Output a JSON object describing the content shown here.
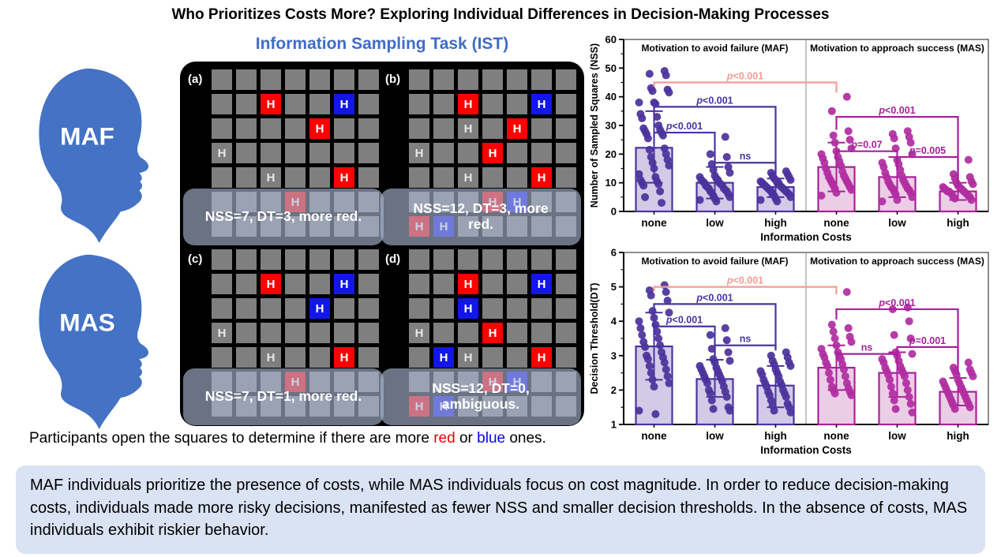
{
  "figure_title": "Who Prioritizes Costs More? Exploring Individual Differences in Decision-Making Processes",
  "ist_title": "Information Sampling Task (IST)",
  "heads": [
    {
      "label": "MAF"
    },
    {
      "label": "MAS"
    }
  ],
  "colors": {
    "head_blue": "#4472c4",
    "square_gray": "#7f7f7f",
    "square_red": "#fe0000",
    "square_blue": "#1216e8"
  },
  "ist_panels": [
    {
      "label": "(a)",
      "caption": "NSS=7, DT=3, more red.",
      "rows": [
        ".......",
        "..R..B.",
        "....R..",
        "G......",
        "..G..R.",
        "...R...",
        "......."
      ]
    },
    {
      "label": "(b)",
      "caption": "NSS=12, DT=3, more red.",
      "rows": [
        ".......",
        "..R..B.",
        "..G.R..",
        "G..R...",
        "..G..R.",
        "...RB..",
        "RB....."
      ]
    },
    {
      "label": "(c)",
      "caption": "NSS=7, DT=1, more red.",
      "rows": [
        ".......",
        "..R..B.",
        "....B..",
        "G......",
        "..G..R.",
        "...R...",
        "......."
      ]
    },
    {
      "label": "(d)",
      "caption": "NSS=12, DT=0, ambiguous.",
      "rows": [
        ".......",
        "..R..B.",
        "..B....",
        "G..R...",
        ".BG..R.",
        "...RB..",
        "RB....."
      ]
    }
  ],
  "participants_line": {
    "pre": "Participants open the squares to determine if there are more ",
    "red_word": "red",
    "mid": " or ",
    "blue_word": "blue",
    "post": " ones."
  },
  "summary_text": "MAF individuals prioritize the presence of costs, while MAS individuals focus on cost magnitude. In order to reduce decision-making costs, individuals made more risky decisions, manifested as fewer NSS and smaller decision thresholds. In the absence of costs, MAS individuals exhibit riskier behavior.",
  "chart_colors": {
    "maf": {
      "stroke": "#4a35a0",
      "fill": "#cac1e3",
      "dot": "#4b339c"
    },
    "mas": {
      "stroke": "#a8219b",
      "fill": "#e8c6e2",
      "dot": "#b02da0"
    },
    "pink": "#f59b93"
  },
  "chart_data": [
    {
      "id": "chart-nss",
      "type": "bar",
      "title": "",
      "ylabel": "Number of Sampled Squares (NSS)",
      "xlabel": "Information Costs",
      "ylim": [
        0,
        60
      ],
      "yticks": [
        0,
        10,
        20,
        30,
        40,
        50,
        60
      ],
      "yminor": 5,
      "panel_titles": [
        "Motivation to avoid failure (MAF)",
        "Motivation to approach success (MAS)"
      ],
      "categories": [
        "none",
        "low",
        "high",
        "none",
        "low",
        "high"
      ],
      "bars": [
        {
          "panel": "MAF",
          "category": "none",
          "color": "maf",
          "mean": 22.2,
          "err_lo": 10,
          "err_hi": 35,
          "points": [
            49,
            48,
            47.5,
            43,
            42.5,
            42,
            41.5,
            38,
            38,
            37.5,
            34,
            33,
            32.5,
            30,
            29,
            28.5,
            28,
            27.5,
            27,
            26.5,
            25.5,
            22,
            21.5,
            20,
            19,
            18,
            17,
            16,
            15,
            13,
            12,
            11,
            10.5,
            10,
            9.5,
            9,
            7,
            5,
            3
          ]
        },
        {
          "panel": "MAF",
          "category": "low",
          "color": "maf",
          "mean": 10,
          "err_lo": 4.5,
          "err_hi": 15.5,
          "points": [
            26,
            20,
            19,
            16.5,
            15.5,
            14.5,
            13.5,
            12.5,
            12,
            11.5,
            11,
            11,
            10.5,
            10,
            10,
            9.5,
            9,
            9,
            8.5,
            8,
            8,
            7.5,
            7,
            7,
            6.5,
            6,
            5.5,
            5,
            4.5,
            4,
            3.5
          ]
        },
        {
          "panel": "MAF",
          "category": "high",
          "color": "maf",
          "mean": 8.5,
          "err_lo": 5,
          "err_hi": 11.5,
          "points": [
            14,
            13.5,
            13,
            12.5,
            12,
            11.5,
            11,
            11,
            10.5,
            10,
            10,
            10,
            9.5,
            9,
            9,
            8.5,
            8.5,
            8,
            8,
            7.5,
            7.5,
            7,
            7,
            6.5,
            6,
            6,
            5.5,
            5,
            4.5,
            4,
            3.5
          ]
        },
        {
          "panel": "MAS",
          "category": "none",
          "color": "mas",
          "mean": 15.5,
          "err_lo": 7,
          "err_hi": 24,
          "points": [
            40,
            35,
            28,
            26.5,
            25,
            24,
            22,
            21,
            20,
            19,
            18.5,
            17.5,
            17,
            16,
            15,
            14,
            13.5,
            12.5,
            12,
            11.5,
            11,
            10.5,
            10,
            9.5,
            9,
            8.5,
            8,
            7.5,
            6.5,
            5.5
          ]
        },
        {
          "panel": "MAS",
          "category": "low",
          "color": "mas",
          "mean": 12,
          "err_lo": 5,
          "err_hi": 19,
          "points": [
            28,
            27,
            26,
            25.5,
            24,
            22,
            20,
            18,
            17,
            16.5,
            15.5,
            14.5,
            13.5,
            12.5,
            12,
            11,
            10.5,
            10,
            9.5,
            9,
            8.5,
            8,
            8,
            7.5,
            7,
            6.5,
            6,
            5,
            4,
            3.5
          ]
        },
        {
          "panel": "MAS",
          "category": "high",
          "color": "mas",
          "mean": 7,
          "err_lo": 4,
          "err_hi": 10,
          "points": [
            18,
            13,
            12,
            11.5,
            10.5,
            10,
            9.5,
            9,
            8.5,
            8.5,
            8,
            8,
            7.5,
            7.5,
            7,
            7,
            7,
            6.5,
            6.5,
            6,
            6,
            5.5,
            5,
            5,
            4.5,
            4
          ]
        }
      ],
      "brackets": [
        {
          "from": 0,
          "to": 3,
          "y": 45,
          "e1": 43.5,
          "e2": 41.5,
          "label": "p<0.001",
          "color": "pink"
        },
        {
          "from": 0,
          "to": 1,
          "y": 27.5,
          "e1": 23.5,
          "e2": 16.5,
          "label": "p<0.001",
          "color": "maf"
        },
        {
          "from": 0,
          "to": 2,
          "y": 36.5,
          "e1": 33.5,
          "e2": 12.5,
          "label": "p<0.001",
          "color": "maf"
        },
        {
          "from": 1,
          "to": 2,
          "y": 17,
          "e1": 13.5,
          "e2": 12.5,
          "label": "ns",
          "color": "maf"
        },
        {
          "from": 3,
          "to": 4,
          "y": 21,
          "e1": 17,
          "e2": 14.5,
          "label": "p=0.07",
          "color": "mas"
        },
        {
          "from": 3,
          "to": 5,
          "y": 33,
          "e1": 28.5,
          "e2": 8.5,
          "label": "p<0.001",
          "color": "mas"
        },
        {
          "from": 4,
          "to": 5,
          "y": 19,
          "e1": 14.5,
          "e2": 8.5,
          "label": "p=0.005",
          "color": "mas"
        }
      ]
    },
    {
      "id": "chart-dt",
      "type": "bar",
      "title": "",
      "ylabel": "Decision Threshold(DT)",
      "xlabel": "Information Costs",
      "ylim": [
        1,
        6
      ],
      "yticks": [
        1,
        2,
        3,
        4,
        5,
        6
      ],
      "yminor": 0.5,
      "panel_titles": [
        "Motivation to avoid failure (MAF)",
        "Motivation to approach success (MAS)"
      ],
      "categories": [
        "none",
        "low",
        "high",
        "none",
        "low",
        "high"
      ],
      "bars": [
        {
          "panel": "MAF",
          "category": "none",
          "color": "maf",
          "mean": 3.27,
          "err_lo": 2.3,
          "err_hi": 4.25,
          "points": [
            5.05,
            4.9,
            4.85,
            4.75,
            4.6,
            4.3,
            4.25,
            4.1,
            4.0,
            3.9,
            3.8,
            3.7,
            3.6,
            3.5,
            3.4,
            3.3,
            3.25,
            3.1,
            3.0,
            2.95,
            2.9,
            2.8,
            2.7,
            2.6,
            2.5,
            2.4,
            2.3,
            2.2,
            2.1,
            1.4,
            1.3
          ]
        },
        {
          "panel": "MAF",
          "category": "low",
          "color": "maf",
          "mean": 2.32,
          "err_lo": 1.8,
          "err_hi": 2.88,
          "points": [
            3.8,
            3.6,
            3.45,
            3.2,
            3.1,
            2.9,
            2.85,
            2.8,
            2.7,
            2.65,
            2.6,
            2.55,
            2.5,
            2.45,
            2.4,
            2.35,
            2.3,
            2.25,
            2.2,
            2.1,
            2.0,
            1.95,
            1.9,
            1.8,
            1.7,
            1.5,
            1.45,
            1.4
          ]
        },
        {
          "panel": "MAF",
          "category": "high",
          "color": "maf",
          "mean": 2.13,
          "err_lo": 1.5,
          "err_hi": 2.7,
          "points": [
            3.1,
            3.0,
            2.95,
            2.85,
            2.8,
            2.75,
            2.7,
            2.6,
            2.55,
            2.5,
            2.45,
            2.4,
            2.3,
            2.25,
            2.2,
            2.15,
            2.1,
            2.0,
            1.95,
            1.9,
            1.85,
            1.8,
            1.7,
            1.6,
            1.55,
            1.5,
            1.4,
            1.35
          ]
        },
        {
          "panel": "MAS",
          "category": "none",
          "color": "mas",
          "mean": 2.65,
          "err_lo": 2.0,
          "err_hi": 3.3,
          "points": [
            4.85,
            3.9,
            3.8,
            3.7,
            3.55,
            3.5,
            3.4,
            3.3,
            3.2,
            3.1,
            3.05,
            3.0,
            2.95,
            2.9,
            2.8,
            2.75,
            2.7,
            2.6,
            2.5,
            2.4,
            2.3,
            2.2,
            2.1,
            2.05,
            2.0,
            1.95,
            1.9,
            1.85
          ]
        },
        {
          "panel": "MAS",
          "category": "low",
          "color": "mas",
          "mean": 2.5,
          "err_lo": 1.8,
          "err_hi": 3.1,
          "points": [
            4.4,
            4.35,
            4.0,
            3.6,
            3.5,
            3.1,
            3.05,
            3.0,
            2.9,
            2.85,
            2.8,
            2.7,
            2.65,
            2.6,
            2.55,
            2.5,
            2.45,
            2.4,
            2.3,
            2.2,
            2.1,
            2.0,
            1.9,
            1.8,
            1.7,
            1.6,
            1.45,
            1.35
          ]
        },
        {
          "panel": "MAS",
          "category": "high",
          "color": "mas",
          "mean": 1.95,
          "err_lo": 1.55,
          "err_hi": 2.35,
          "points": [
            2.8,
            2.65,
            2.6,
            2.55,
            2.5,
            2.45,
            2.4,
            2.3,
            2.25,
            2.2,
            2.15,
            2.1,
            2.05,
            2.0,
            1.95,
            1.9,
            1.85,
            1.8,
            1.75,
            1.7,
            1.65,
            1.6,
            1.55,
            1.5,
            1.45
          ]
        }
      ],
      "brackets": [
        {
          "from": 0,
          "to": 3,
          "y": 5.0,
          "e1": 4.87,
          "e2": 4.78,
          "label": "p<0.001",
          "color": "pink"
        },
        {
          "from": 0,
          "to": 1,
          "y": 3.85,
          "e1": 3.55,
          "e2": 2.95,
          "label": "p<0.001",
          "color": "maf"
        },
        {
          "from": 0,
          "to": 2,
          "y": 4.5,
          "e1": 4.3,
          "e2": 3.2,
          "label": "p<0.001",
          "color": "maf"
        },
        {
          "from": 1,
          "to": 2,
          "y": 3.3,
          "e1": 3.0,
          "e2": 3.15,
          "label": "ns",
          "color": "maf"
        },
        {
          "from": 3,
          "to": 4,
          "y": 3.05,
          "e1": 2.9,
          "e2": 2.75,
          "label": "ns",
          "color": "mas"
        },
        {
          "from": 3,
          "to": 5,
          "y": 4.35,
          "e1": 4.05,
          "e2": 2.75,
          "label": "p<0.001",
          "color": "mas"
        },
        {
          "from": 4,
          "to": 5,
          "y": 3.25,
          "e1": 3.0,
          "e2": 2.45,
          "label": "p=0.001",
          "color": "mas"
        }
      ]
    }
  ]
}
